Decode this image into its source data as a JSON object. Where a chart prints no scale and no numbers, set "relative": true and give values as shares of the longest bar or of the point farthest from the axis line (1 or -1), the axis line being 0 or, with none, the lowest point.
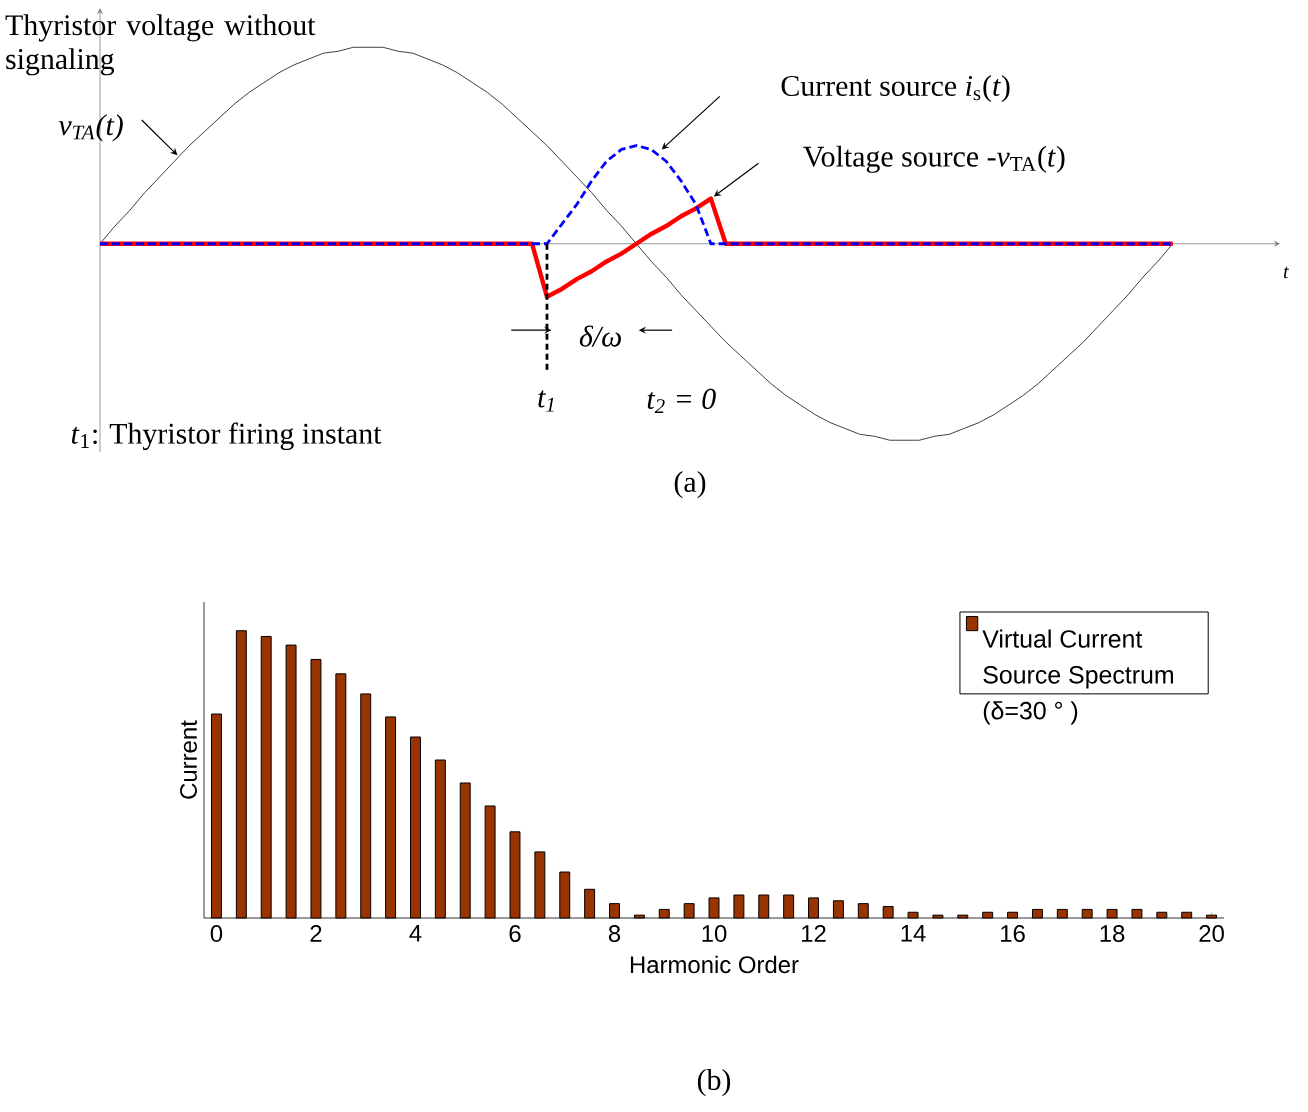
{
  "chart_data": [
    {
      "type": "line",
      "relative": true,
      "xlabel": "t",
      "marker": "none",
      "categories": [
        null,
        null,
        null,
        null,
        null,
        null,
        null,
        null,
        null,
        null,
        null,
        null,
        null,
        null,
        null,
        null,
        null,
        null,
        null,
        null,
        null,
        null,
        null,
        null,
        null,
        null,
        null,
        null,
        null,
        null,
        null,
        null,
        null,
        null,
        null,
        null,
        null,
        null,
        null,
        null,
        null,
        null,
        null,
        null,
        null,
        null,
        null,
        null,
        null,
        null,
        null,
        null,
        null,
        null,
        null,
        null,
        null,
        null,
        null,
        null,
        null,
        null,
        null,
        null,
        null,
        null,
        null,
        null,
        null,
        null,
        null,
        null,
        null
      ],
      "series": [
        {
          "color": "#404040",
          "line_style": "solid",
          "values": [
            0,
            0.09,
            0.17,
            0.26,
            0.34,
            0.42,
            0.5,
            0.57,
            0.64,
            0.71,
            0.77,
            0.82,
            0.87,
            0.91,
            0.94,
            0.97,
            0.98,
            1,
            1,
            1,
            0.98,
            0.97,
            0.94,
            0.91,
            0.87,
            0.82,
            0.77,
            0.71,
            0.64,
            0.57,
            0.5,
            0.42,
            0.34,
            0.26,
            0.17,
            0.09,
            0,
            -0.09,
            -0.17,
            -0.26,
            -0.34,
            -0.42,
            -0.5,
            -0.57,
            -0.64,
            -0.71,
            -0.77,
            -0.82,
            -0.87,
            -0.91,
            -0.94,
            -0.97,
            -0.98,
            -1,
            -1,
            -1,
            -0.98,
            -0.97,
            -0.94,
            -0.91,
            -0.87,
            -0.82,
            -0.77,
            -0.71,
            -0.64,
            -0.57,
            -0.5,
            -0.42,
            -0.34,
            -0.26,
            -0.17,
            -0.09,
            0
          ]
        },
        {
          "color": "#ff0000",
          "line_style": "solid",
          "values": [
            0,
            0,
            0,
            0,
            0,
            0,
            0,
            0,
            0,
            0,
            0,
            0,
            0,
            0,
            0,
            0,
            0,
            0,
            0,
            0,
            0,
            0,
            0,
            0,
            0,
            0,
            0,
            0,
            0,
            0,
            -0.27,
            -0.23,
            -0.18,
            -0.14,
            -0.09,
            -0.05,
            0,
            0.05,
            0.09,
            0.14,
            0.18,
            0.23,
            0,
            0,
            0,
            0,
            0,
            0,
            0,
            0,
            0,
            0,
            0,
            0,
            0,
            0,
            0,
            0,
            0,
            0,
            0,
            0,
            0,
            0,
            0,
            0,
            0,
            0,
            0,
            0,
            0,
            0,
            0
          ]
        },
        {
          "color": "#0000ff",
          "line_style": "dashed",
          "values": [
            0,
            0,
            0,
            0,
            0,
            0,
            0,
            0,
            0,
            0,
            0,
            0,
            0,
            0,
            0,
            0,
            0,
            0,
            0,
            0,
            0,
            0,
            0,
            0,
            0,
            0,
            0,
            0,
            0,
            0,
            0,
            0.1,
            0.2,
            0.32,
            0.42,
            0.48,
            0.5,
            0.48,
            0.42,
            0.32,
            0.2,
            0,
            0,
            0,
            0,
            0,
            0,
            0,
            0,
            0,
            0,
            0,
            0,
            0,
            0,
            0,
            0,
            0,
            0,
            0,
            0,
            0,
            0,
            0,
            0,
            0,
            0,
            0,
            0,
            0,
            0,
            0,
            0
          ]
        }
      ],
      "annotations": [
        "Thyristor voltage without signaling",
        "v$_{TA}$(t)",
        "Current source *i*$_{s}$(*t*)",
        "Voltage source -*v*$_{TA}$(*t*)",
        "δ/ω",
        "*t*$_{1}$: Thyristor firing instant",
        "(a)",
        "t$_{1}$",
        "t$_{2}$ = 0"
      ]
    },
    {
      "type": "bar",
      "relative": true,
      "xlabel": "Harmonic Order",
      "ylabel": "Current",
      "legend": "top right",
      "xlim": [
        -0.25,
        20.25
      ],
      "xticks": [
        0,
        2,
        4,
        6,
        8,
        10,
        12,
        14,
        16,
        18,
        20
      ],
      "x": [
        0,
        0.5,
        1,
        1.5,
        2,
        2.5,
        3,
        3.5,
        4,
        4.5,
        5,
        5.5,
        6,
        6.5,
        7,
        7.5,
        8,
        8.5,
        9,
        9.5,
        10,
        10.5,
        11,
        11.5,
        12,
        12.5,
        13,
        13.5,
        14,
        14.5,
        15,
        15.5,
        16,
        16.5,
        17,
        17.5,
        18,
        18.5,
        19,
        19.5,
        20
      ],
      "series": [
        {
          "name": "Virtual Current Source Spectrum (δ=30 ° )",
          "color": "#993300",
          "values": [
            0.71,
            1,
            0.98,
            0.95,
            0.9,
            0.85,
            0.78,
            0.7,
            0.63,
            0.55,
            0.47,
            0.39,
            0.3,
            0.23,
            0.16,
            0.1,
            0.05,
            0.01,
            0.03,
            0.05,
            0.07,
            0.08,
            0.08,
            0.08,
            0.07,
            0.06,
            0.05,
            0.04,
            0.02,
            0.01,
            0.01,
            0.02,
            0.02,
            0.03,
            0.03,
            0.03,
            0.03,
            0.03,
            0.02,
            0.02,
            0.01
          ]
        }
      ],
      "annotations": [
        "(b)"
      ]
    }
  ]
}
